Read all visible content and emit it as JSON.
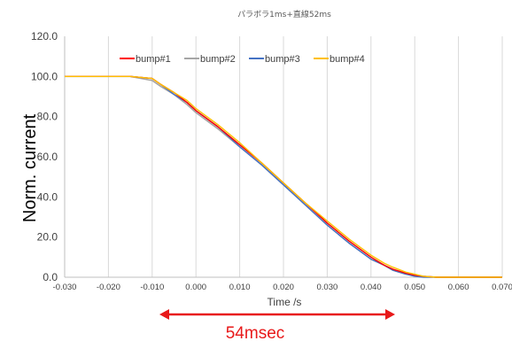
{
  "chart_data": {
    "type": "line",
    "title": "パラボラ1ms+直線52ms",
    "xlabel": "Time /s",
    "ylabel": "Norm. current",
    "xlim": [
      -0.03,
      0.07
    ],
    "ylim": [
      0,
      120
    ],
    "x_ticks": [
      "-0.030",
      "-0.020",
      "-0.010",
      "0.000",
      "0.010",
      "0.020",
      "0.030",
      "0.040",
      "0.050",
      "0.060",
      "0.070"
    ],
    "y_ticks": [
      "0.0",
      "20.0",
      "40.0",
      "60.0",
      "80.0",
      "100.0",
      "120.0"
    ],
    "grid": "vertical",
    "legend_position": "top",
    "x": [
      -0.03,
      -0.025,
      -0.02,
      -0.015,
      -0.01,
      -0.008,
      -0.005,
      -0.002,
      0.0,
      0.005,
      0.01,
      0.015,
      0.02,
      0.025,
      0.03,
      0.035,
      0.04,
      0.043,
      0.045,
      0.048,
      0.05,
      0.052,
      0.055,
      0.06,
      0.065,
      0.07
    ],
    "series": [
      {
        "name": "bump#1",
        "color": "#ff0000",
        "values": [
          100,
          100,
          100,
          100,
          99,
          96,
          92,
          87,
          83,
          75,
          66,
          57,
          47,
          37,
          27,
          18,
          10,
          6,
          4,
          2,
          1,
          0.5,
          0,
          0,
          0,
          0
        ]
      },
      {
        "name": "bump#2",
        "color": "#a5a5a5",
        "values": [
          100,
          100,
          100,
          100,
          98,
          95,
          91,
          86,
          82,
          74,
          65,
          56,
          46,
          36,
          26,
          17,
          9,
          6,
          3.5,
          1.5,
          1,
          0.5,
          0,
          0,
          0,
          0
        ]
      },
      {
        "name": "bump#3",
        "color": "#4472c4",
        "values": [
          100,
          100,
          100,
          100,
          99,
          96,
          91,
          87,
          83,
          75,
          65,
          56,
          46,
          36,
          26,
          17,
          9,
          6,
          3.5,
          1.5,
          0.5,
          0,
          0,
          0,
          0,
          0
        ]
      },
      {
        "name": "bump#4",
        "color": "#ffc000",
        "values": [
          100,
          100,
          100,
          100,
          99,
          96,
          92,
          88,
          84,
          76,
          67,
          57,
          47,
          37,
          28,
          19,
          11,
          7,
          5,
          2.5,
          1.5,
          0.5,
          0,
          0,
          0,
          0
        ]
      }
    ],
    "annotation": {
      "text": "54msec",
      "color": "#e8191a"
    }
  }
}
